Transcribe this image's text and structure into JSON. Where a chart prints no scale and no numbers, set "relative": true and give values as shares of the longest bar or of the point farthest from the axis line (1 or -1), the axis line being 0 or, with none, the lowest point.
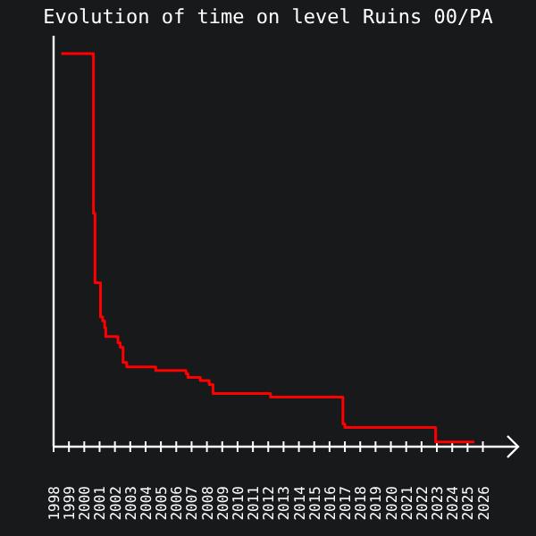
{
  "chart_data": {
    "type": "step",
    "title": "Evolution of time on level Ruins 00/PA",
    "relative": true,
    "x": [
      1998.5,
      2000.6,
      2000.7,
      2001.06,
      2001.2,
      2001.33,
      2001.4,
      2002.2,
      2002.35,
      2002.53,
      2002.77,
      2004.66,
      2006.64,
      2006.76,
      2007.57,
      2008.15,
      2008.4,
      2012.15,
      2016.87,
      2016.99,
      2022.92,
      2025.44
    ],
    "series": [
      {
        "color": "#ff0000",
        "values": [
          1,
          0.594,
          0.417,
          0.33,
          0.32,
          0.303,
          0.28,
          0.264,
          0.253,
          0.214,
          0.203,
          0.194,
          0.186,
          0.176,
          0.168,
          0.158,
          0.135,
          0.126,
          0.058,
          0.049,
          0.012,
          0.012
        ]
      }
    ],
    "xlim": [
      1998,
      2028.3
    ],
    "xticks": [
      1998,
      1999,
      2000,
      2001,
      2002,
      2003,
      2004,
      2005,
      2006,
      2007,
      2008,
      2009,
      2010,
      2011,
      2012,
      2013,
      2014,
      2015,
      2016,
      2017,
      2018,
      2019,
      2020,
      2021,
      2022,
      2023,
      2024,
      2025,
      2026
    ],
    "grid": false
  }
}
